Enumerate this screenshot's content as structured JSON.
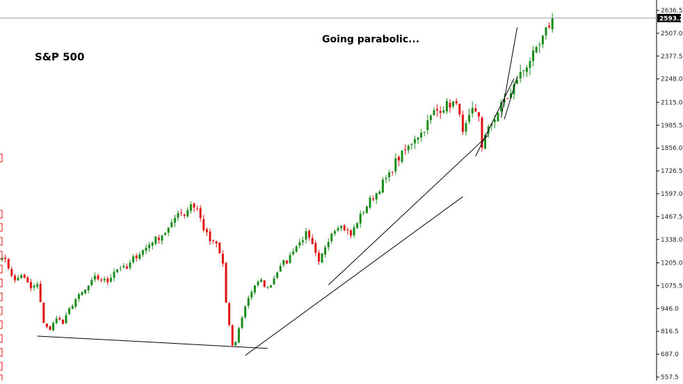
{
  "chart_data": {
    "type": "candlestick",
    "title_left": "S&P 500",
    "title_center": "Going parabolic...",
    "ylim": [
      557.5,
      2636.5
    ],
    "y_ticks": [
      "2636.5",
      "2507.0",
      "2377.5",
      "2248.0",
      "2115.0",
      "1985.5",
      "1856.0",
      "1726.5",
      "1597.0",
      "1467.5",
      "1338.0",
      "1205.0",
      "1075.5",
      "946.0",
      "816.5",
      "687.0",
      "557.5"
    ],
    "current_price": "2593.2",
    "colors": {
      "up": "#1a8c1a",
      "down": "#e01010",
      "line": "#000000",
      "axis": "#000000"
    },
    "anchors": [
      [
        0,
        1250
      ],
      [
        2,
        1180
      ],
      [
        4,
        1100
      ],
      [
        6,
        1140
      ],
      [
        9,
        1060
      ],
      [
        11,
        1080
      ],
      [
        13,
        870
      ],
      [
        15,
        820
      ],
      [
        17,
        900
      ],
      [
        19,
        860
      ],
      [
        21,
        940
      ],
      [
        23,
        1000
      ],
      [
        26,
        1050
      ],
      [
        29,
        1120
      ],
      [
        31,
        1110
      ],
      [
        33,
        1100
      ],
      [
        35,
        1160
      ],
      [
        37,
        1180
      ],
      [
        39,
        1170
      ],
      [
        41,
        1230
      ],
      [
        43,
        1260
      ],
      [
        45,
        1290
      ],
      [
        47,
        1330
      ],
      [
        49,
        1350
      ],
      [
        51,
        1380
      ],
      [
        53,
        1420
      ],
      [
        55,
        1500
      ],
      [
        57,
        1480
      ],
      [
        59,
        1540
      ],
      [
        61,
        1510
      ],
      [
        63,
        1400
      ],
      [
        65,
        1330
      ],
      [
        67,
        1310
      ],
      [
        69,
        1200
      ],
      [
        70,
        980
      ],
      [
        71,
        850
      ],
      [
        72,
        730
      ],
      [
        73,
        760
      ],
      [
        75,
        900
      ],
      [
        77,
        1010
      ],
      [
        79,
        1080
      ],
      [
        81,
        1100
      ],
      [
        83,
        1060
      ],
      [
        85,
        1120
      ],
      [
        87,
        1200
      ],
      [
        89,
        1210
      ],
      [
        91,
        1280
      ],
      [
        93,
        1320
      ],
      [
        95,
        1370
      ],
      [
        97,
        1300
      ],
      [
        99,
        1200
      ],
      [
        101,
        1300
      ],
      [
        103,
        1380
      ],
      [
        105,
        1420
      ],
      [
        107,
        1400
      ],
      [
        109,
        1360
      ],
      [
        111,
        1440
      ],
      [
        113,
        1500
      ],
      [
        115,
        1560
      ],
      [
        117,
        1600
      ],
      [
        119,
        1660
      ],
      [
        121,
        1700
      ],
      [
        123,
        1780
      ],
      [
        125,
        1820
      ],
      [
        127,
        1860
      ],
      [
        129,
        1920
      ],
      [
        131,
        1940
      ],
      [
        133,
        2000
      ],
      [
        135,
        2060
      ],
      [
        137,
        2080
      ],
      [
        139,
        2100
      ],
      [
        141,
        2110
      ],
      [
        143,
        2070
      ],
      [
        144,
        1930
      ],
      [
        145,
        1980
      ],
      [
        147,
        2060
      ],
      [
        149,
        2040
      ],
      [
        150,
        1870
      ],
      [
        151,
        1920
      ],
      [
        153,
        2000
      ],
      [
        155,
        2060
      ],
      [
        157,
        2130
      ],
      [
        159,
        2160
      ],
      [
        161,
        2250
      ],
      [
        163,
        2300
      ],
      [
        165,
        2360
      ],
      [
        167,
        2400
      ],
      [
        169,
        2470
      ],
      [
        171,
        2560
      ],
      [
        172,
        2593
      ]
    ],
    "trendlines": [
      {
        "from": [
          11,
          790
        ],
        "to": [
          83,
          720
        ]
      },
      {
        "from": [
          76,
          680
        ],
        "to": [
          144,
          1580
        ]
      },
      {
        "from": [
          102,
          1080
        ],
        "to": [
          152,
          1930
        ]
      },
      {
        "from": [
          148,
          1810
        ],
        "to": [
          160,
          2250
        ]
      },
      {
        "from": [
          157,
          2020
        ],
        "to": [
          161,
          2260
        ]
      },
      {
        "from": [
          156,
          2030
        ],
        "to": [
          161,
          2540
        ]
      }
    ]
  }
}
